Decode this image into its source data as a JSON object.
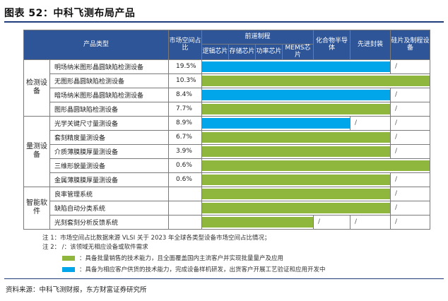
{
  "title": "图表 52：中科飞测布局产品",
  "headers": {
    "product": "产品类型",
    "share": "市场空间占比",
    "front": "前道制程",
    "logic": "逻辑芯片",
    "memory": "存储芯片",
    "power": "功率芯片",
    "mems": "MEMS芯片",
    "compound": "化合物半导体",
    "adv": "先进封装",
    "wafer": "硅片及制程设备"
  },
  "groups": [
    {
      "label": "检测设备",
      "rows": [
        {
          "name": "明场纳米图形晶圆缺陷检测设备",
          "share": "19.5%",
          "bar": "blue",
          "span": 6,
          "tail": [
            "/"
          ]
        },
        {
          "name": "无图形晶圆缺陷检测设备",
          "share": "10.3%",
          "bar": "green",
          "span": 7,
          "tail": []
        },
        {
          "name": "暗场纳米图形晶圆缺陷检测设备",
          "share": "8.4%",
          "bar": "blue",
          "span": 6,
          "tail": [
            "/"
          ]
        },
        {
          "name": "图形晶圆缺陷检测设备",
          "share": "7.7%",
          "bar": "green",
          "span": 6,
          "tail": [
            "/"
          ]
        }
      ]
    },
    {
      "label": "量测设备",
      "rows": [
        {
          "name": "光学关键尺寸量测设备",
          "share": "8.9%",
          "bar": "blue",
          "span": 5,
          "tail": [
            "/",
            "/"
          ]
        },
        {
          "name": "套刻精度量测设备",
          "share": "6.7%",
          "bar": "green",
          "span": 6,
          "tail": [
            "/"
          ]
        },
        {
          "name": "介质薄膜膜厚量测设备",
          "share": "3.9%",
          "bar": "green",
          "span": 6,
          "tail": [
            "/"
          ]
        },
        {
          "name": "三维形貌量测设备",
          "share": "0.6%",
          "bar": "green",
          "span": 7,
          "tail": []
        },
        {
          "name": "金属薄膜膜厚量测设备",
          "share": "0.6%",
          "bar": "green",
          "span": 6,
          "tail": [
            "/"
          ]
        }
      ]
    },
    {
      "label": "智能软件",
      "rows": [
        {
          "name": "良率管理系统",
          "share": "",
          "bar": "green",
          "span": 6,
          "tail": [
            "/"
          ]
        },
        {
          "name": "缺陷自动分类系统",
          "share": "",
          "bar": "green",
          "span": 6,
          "tail": [
            "/"
          ]
        },
        {
          "name": "光刻套刻分析反馈系统",
          "share": "",
          "bar": "green",
          "span": 4,
          "tail": [
            "/",
            "/",
            "/"
          ]
        }
      ]
    }
  ],
  "notes": {
    "note1": "注 1：市场空间占比数据来源 VLSI 关于 2023 年全球各类型设备市场空间占比情况；",
    "note2": "注 2：    /：该领域无相应设备或软件需求",
    "legend_green": "：具备批量销售的技术能力，且全面覆盖国内主流客户并实现批量量产及应用",
    "legend_blue": "：具备为相应客户供货的技术能力，完成设备样机研发，出货客户开展工艺验证和应用开发中"
  },
  "colors": {
    "green": "#8fb73e",
    "blue": "#00a6e9",
    "header": "#2e5597"
  },
  "source": "资料来源：中科飞测财报，东方财富证券研究所"
}
